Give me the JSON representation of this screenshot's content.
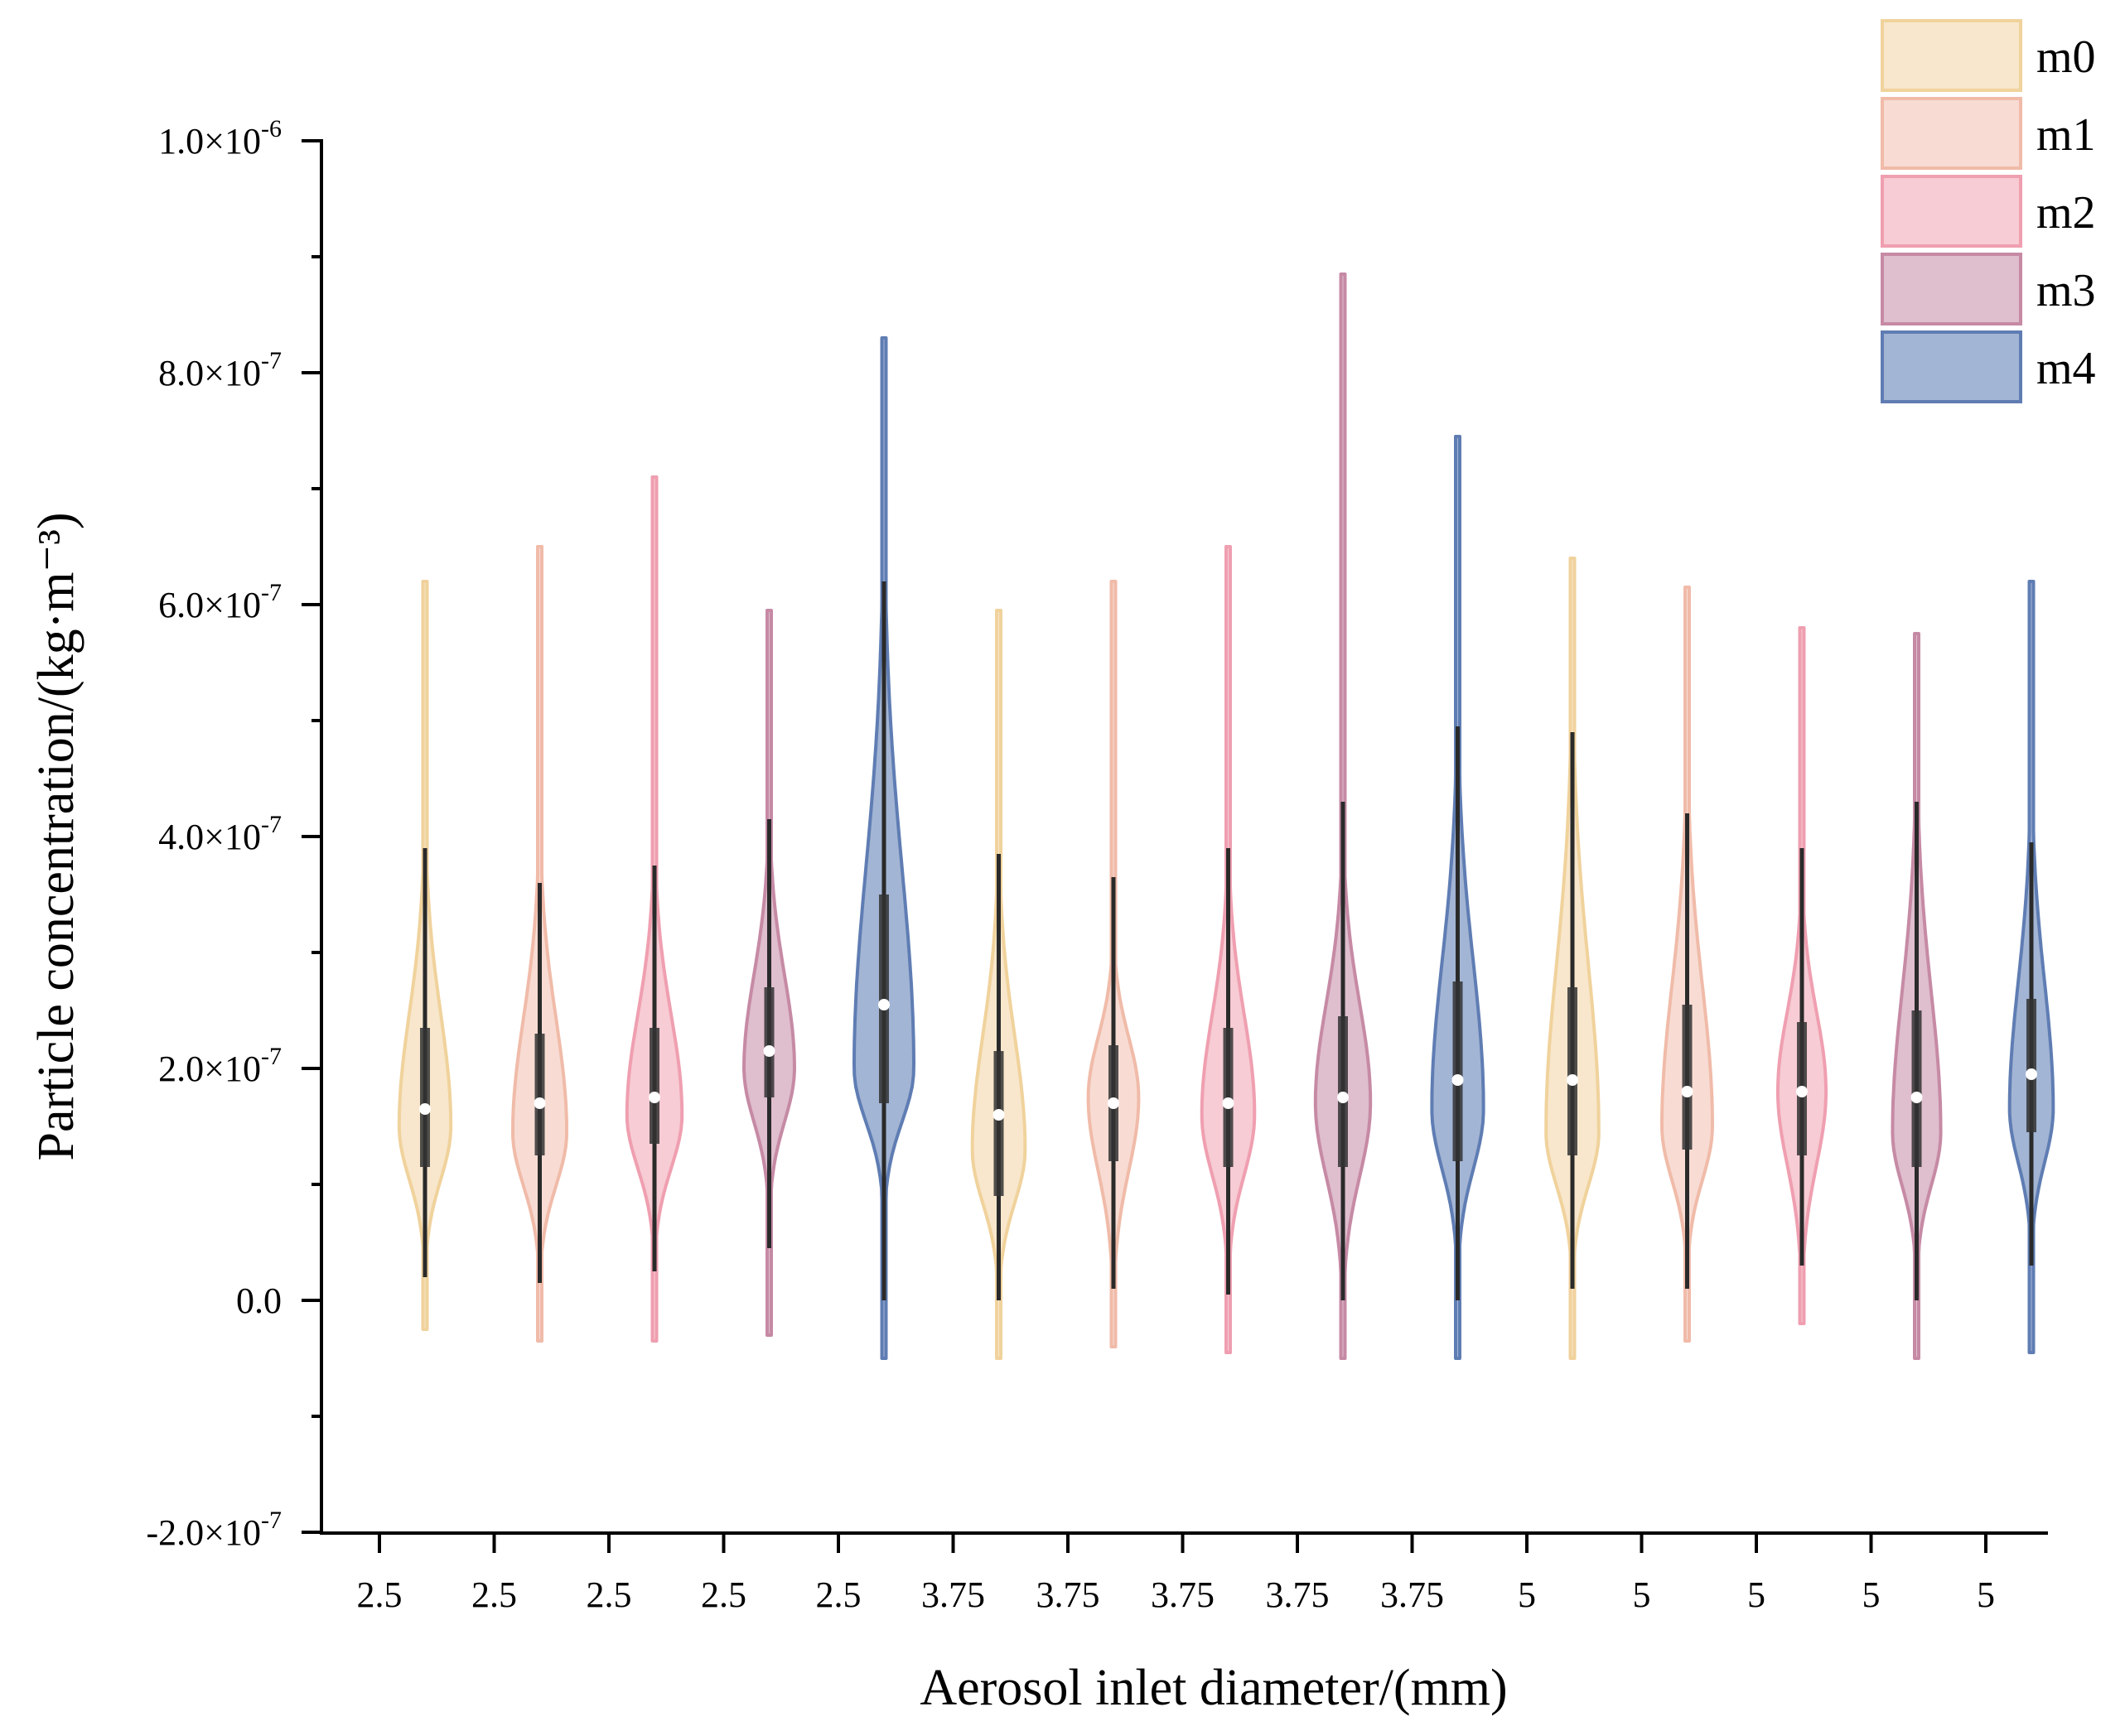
{
  "chart_data": {
    "type": "violin",
    "xlabel": "Aerosol inlet diameter/(mm)",
    "ylabel": "Particle concentration/(kg·m⁻³)",
    "ylim": [
      -2e-07,
      1e-06
    ],
    "y_ticks": [
      {
        "value": -2e-07,
        "mant": "-2.0",
        "base": "×10",
        "exp": "-7"
      },
      {
        "value": 0,
        "mant": "0.0",
        "base": "",
        "exp": ""
      },
      {
        "value": 2e-07,
        "mant": "2.0",
        "base": "×10",
        "exp": "-7"
      },
      {
        "value": 4e-07,
        "mant": "4.0",
        "base": "×10",
        "exp": "-7"
      },
      {
        "value": 6e-07,
        "mant": "6.0",
        "base": "×10",
        "exp": "-7"
      },
      {
        "value": 8e-07,
        "mant": "8.0",
        "base": "×10",
        "exp": "-7"
      },
      {
        "value": 1e-06,
        "mant": "1.0",
        "base": "×10",
        "exp": "-6"
      }
    ],
    "x_tick_labels": [
      "2.5",
      "2.5",
      "2.5",
      "2.5",
      "2.5",
      "3.75",
      "3.75",
      "3.75",
      "3.75",
      "3.75",
      "5",
      "5",
      "5",
      "5",
      "5"
    ],
    "grid": false,
    "legend_position": "top-right",
    "series": [
      {
        "name": "m0",
        "fill": "#f5deb8",
        "stroke": "#f0d29c"
      },
      {
        "name": "m1",
        "fill": "#f5cfc3",
        "stroke": "#f0bba9"
      },
      {
        "name": "m2",
        "fill": "#f4b8c4",
        "stroke": "#ef9fb0"
      },
      {
        "name": "m3",
        "fill": "#d3a5bb",
        "stroke": "#c68aa5"
      },
      {
        "name": "m4",
        "fill": "#8099c4",
        "stroke": "#5f7db3"
      }
    ],
    "violins": [
      {
        "group": "2.5",
        "series": "m0",
        "median": 1.65e-07,
        "q1": 1.15e-07,
        "q3": 2.35e-07,
        "wlo": 2e-08,
        "whi": 3.9e-07,
        "min": -2.5e-08,
        "max": 6.2e-07,
        "mode": 1.5e-07,
        "hw": 0.45
      },
      {
        "group": "2.5",
        "series": "m1",
        "median": 1.7e-07,
        "q1": 1.25e-07,
        "q3": 2.3e-07,
        "wlo": 1.5e-08,
        "whi": 3.6e-07,
        "min": -3.5e-08,
        "max": 6.5e-07,
        "mode": 1.45e-07,
        "hw": 0.47
      },
      {
        "group": "2.5",
        "series": "m2",
        "median": 1.75e-07,
        "q1": 1.35e-07,
        "q3": 2.35e-07,
        "wlo": 2.5e-08,
        "whi": 3.75e-07,
        "min": -3.5e-08,
        "max": 7.1e-07,
        "mode": 1.6e-07,
        "hw": 0.48
      },
      {
        "group": "2.5",
        "series": "m3",
        "median": 2.15e-07,
        "q1": 1.75e-07,
        "q3": 2.7e-07,
        "wlo": 4.5e-08,
        "whi": 4.15e-07,
        "min": -3e-08,
        "max": 5.95e-07,
        "mode": 2e-07,
        "hw": 0.44
      },
      {
        "group": "2.5",
        "series": "m4",
        "median": 2.55e-07,
        "q1": 1.7e-07,
        "q3": 3.5e-07,
        "wlo": 0.0,
        "whi": 6.2e-07,
        "min": -5e-08,
        "max": 8.3e-07,
        "mode": 2e-07,
        "hw": 0.52
      },
      {
        "group": "3.75",
        "series": "m0",
        "median": 1.6e-07,
        "q1": 9e-08,
        "q3": 2.15e-07,
        "wlo": 0.0,
        "whi": 3.85e-07,
        "min": -5e-08,
        "max": 5.95e-07,
        "mode": 1.3e-07,
        "hw": 0.46
      },
      {
        "group": "3.75",
        "series": "m1",
        "median": 1.7e-07,
        "q1": 1.2e-07,
        "q3": 2.2e-07,
        "wlo": 1e-08,
        "whi": 3.65e-07,
        "min": -4e-08,
        "max": 6.2e-07,
        "mode": 1.75e-07,
        "hw": 0.44
      },
      {
        "group": "3.75",
        "series": "m2",
        "median": 1.7e-07,
        "q1": 1.15e-07,
        "q3": 2.35e-07,
        "wlo": 5e-09,
        "whi": 3.9e-07,
        "min": -4.5e-08,
        "max": 6.5e-07,
        "mode": 1.6e-07,
        "hw": 0.46
      },
      {
        "group": "3.75",
        "series": "m3",
        "median": 1.75e-07,
        "q1": 1.15e-07,
        "q3": 2.45e-07,
        "wlo": 0.0,
        "whi": 4.3e-07,
        "min": -5e-08,
        "max": 8.85e-07,
        "mode": 1.7e-07,
        "hw": 0.48
      },
      {
        "group": "3.75",
        "series": "m4",
        "median": 1.9e-07,
        "q1": 1.2e-07,
        "q3": 2.75e-07,
        "wlo": 0.0,
        "whi": 4.95e-07,
        "min": -5e-08,
        "max": 7.45e-07,
        "mode": 1.65e-07,
        "hw": 0.45
      },
      {
        "group": "5",
        "series": "m0",
        "median": 1.9e-07,
        "q1": 1.25e-07,
        "q3": 2.7e-07,
        "wlo": 1e-08,
        "whi": 4.9e-07,
        "min": -5e-08,
        "max": 6.4e-07,
        "mode": 1.45e-07,
        "hw": 0.46
      },
      {
        "group": "5",
        "series": "m1",
        "median": 1.8e-07,
        "q1": 1.3e-07,
        "q3": 2.55e-07,
        "wlo": 1e-08,
        "whi": 4.2e-07,
        "min": -3.5e-08,
        "max": 6.15e-07,
        "mode": 1.5e-07,
        "hw": 0.44
      },
      {
        "group": "5",
        "series": "m2",
        "median": 1.8e-07,
        "q1": 1.25e-07,
        "q3": 2.4e-07,
        "wlo": 3e-08,
        "whi": 3.9e-07,
        "min": -2e-08,
        "max": 5.8e-07,
        "mode": 1.8e-07,
        "hw": 0.42
      },
      {
        "group": "5",
        "series": "m3",
        "median": 1.75e-07,
        "q1": 1.15e-07,
        "q3": 2.5e-07,
        "wlo": 0.0,
        "whi": 4.3e-07,
        "min": -5e-08,
        "max": 5.75e-07,
        "mode": 1.45e-07,
        "hw": 0.42
      },
      {
        "group": "5",
        "series": "m4",
        "median": 1.95e-07,
        "q1": 1.45e-07,
        "q3": 2.6e-07,
        "wlo": 3e-08,
        "whi": 3.95e-07,
        "min": -4.5e-08,
        "max": 6.2e-07,
        "mode": 1.65e-07,
        "hw": 0.38
      }
    ]
  }
}
